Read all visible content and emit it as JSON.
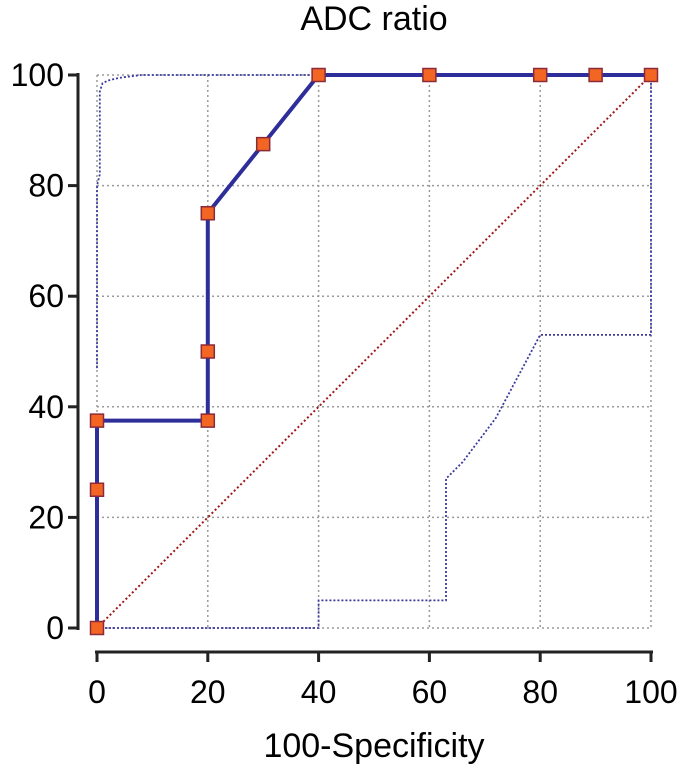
{
  "chart_data": {
    "type": "line",
    "title": "ADC ratio",
    "xlabel": "100-Specificity",
    "ylabel": "",
    "xlim": [
      0,
      100
    ],
    "ylim": [
      0,
      100
    ],
    "x_ticks": [
      "0",
      "20",
      "40",
      "60",
      "80",
      "100"
    ],
    "y_ticks": [
      "0",
      "20",
      "40",
      "60",
      "80",
      "100"
    ],
    "grid": true,
    "colors": {
      "roc_line": "#2e2e9a",
      "marker_fill": "#f26522",
      "marker_stroke": "#8b2a3a",
      "ci_line": "#3a3aa0",
      "reference_line": "#a01818",
      "grid": "#9a9a9a",
      "axis": "#222222"
    },
    "series": [
      {
        "role": "roc",
        "style": "solid-with-markers",
        "x": [
          0,
          0,
          0,
          0,
          20,
          20,
          20,
          30,
          40,
          60,
          80,
          90,
          100
        ],
        "y": [
          0,
          25,
          37.5,
          37.5,
          37.5,
          50,
          75,
          87.5,
          100,
          100,
          100,
          100,
          100
        ]
      },
      {
        "role": "ci-upper",
        "style": "dotted",
        "x": [
          0,
          0,
          0.5,
          0.5,
          1,
          2,
          4,
          8,
          100
        ],
        "y": [
          47,
          80,
          82,
          97,
          98.5,
          99,
          99.5,
          100,
          100
        ]
      },
      {
        "role": "ci-lower",
        "style": "dotted",
        "x": [
          0,
          40,
          40,
          63,
          63,
          66,
          72,
          80,
          100,
          100
        ],
        "y": [
          0,
          0,
          5,
          5,
          27,
          30,
          38,
          53,
          53,
          100
        ]
      },
      {
        "role": "reference",
        "style": "dotted",
        "x": [
          0,
          100
        ],
        "y": [
          0,
          100
        ]
      }
    ]
  }
}
